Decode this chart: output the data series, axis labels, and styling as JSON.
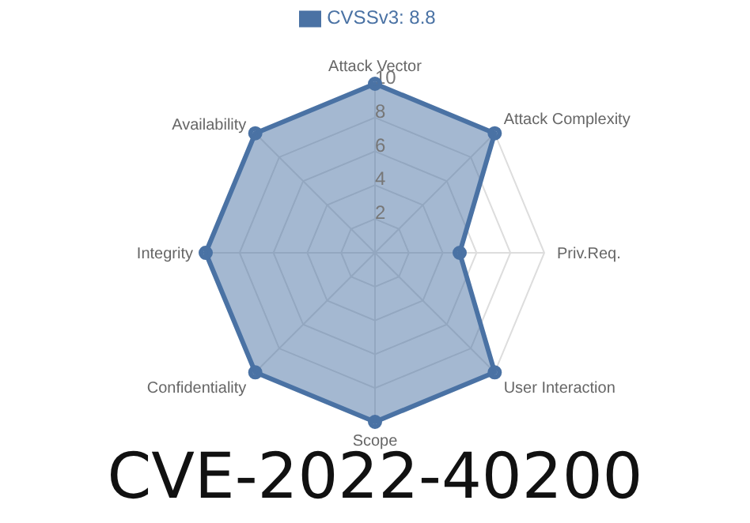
{
  "chart_data": {
    "type": "radar",
    "title": "CVE-2022-40200",
    "categories": [
      "Attack Vector",
      "Attack Complexity",
      "Priv.Req.",
      "User Interaction",
      "Scope",
      "Confidentiality",
      "Integrity",
      "Availability"
    ],
    "series": [
      {
        "name": "CVSSv3: 8.8",
        "color": "#4a72a4",
        "values": [
          10,
          10,
          5,
          10,
          10,
          10,
          10,
          10
        ]
      }
    ],
    "ylim": [
      0,
      10
    ],
    "yticks": [
      2,
      4,
      6,
      8,
      10
    ],
    "grid": true,
    "legend": "top",
    "marker": "circle"
  }
}
